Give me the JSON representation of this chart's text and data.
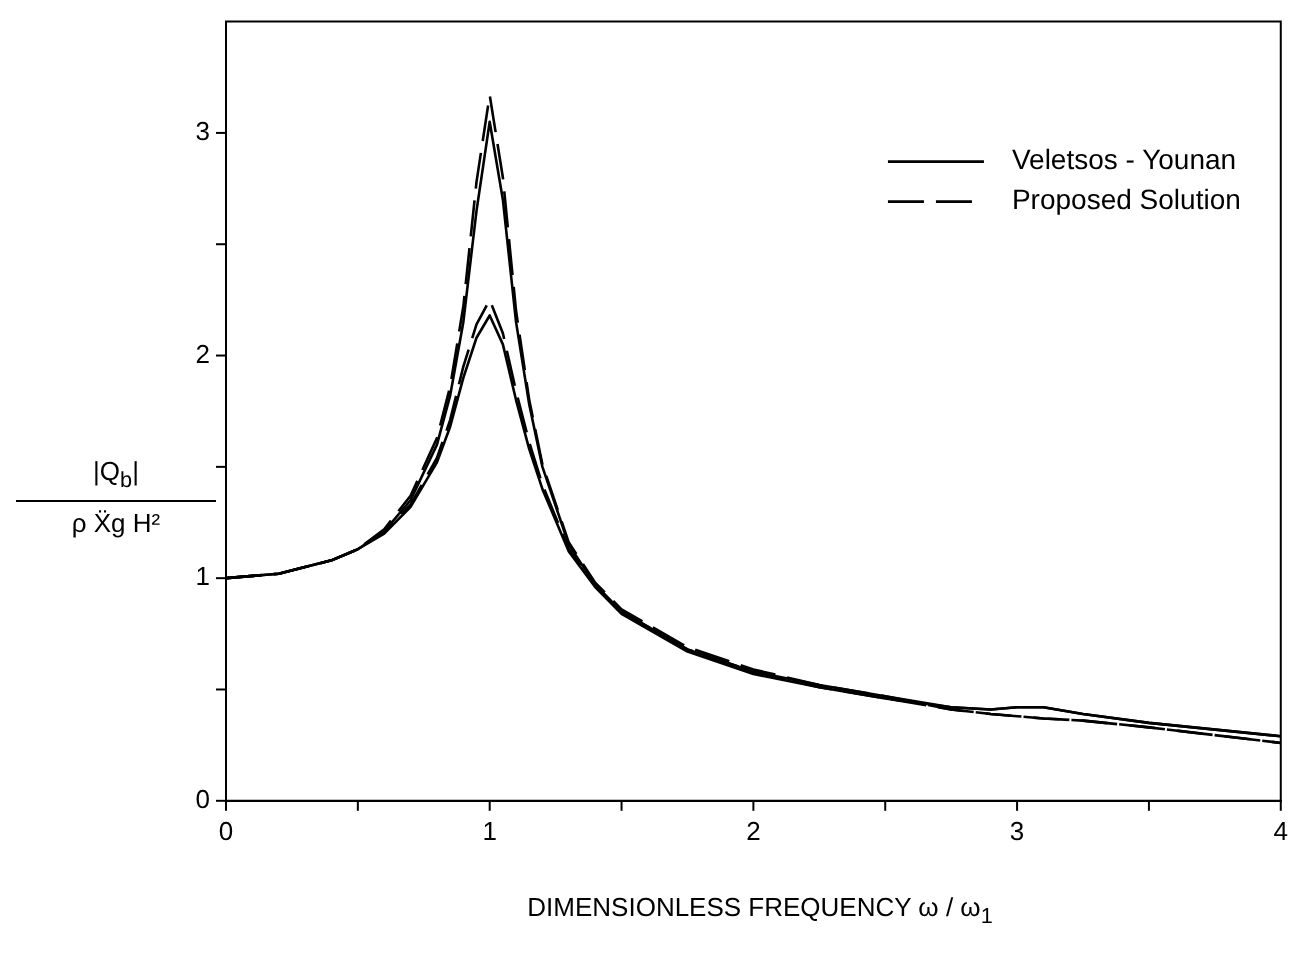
{
  "chart_data": {
    "type": "line",
    "xlabel": "DIMENSIONLESS FREQUENCY ω / ω$_{1}$",
    "ylabel": [
      "|Q$_{b}$|",
      "ρ Ẍg H²"
    ],
    "xlim": [
      0,
      4
    ],
    "xticks": [
      0,
      {
        "value": 0.5,
        "label": null
      },
      1,
      {
        "value": 1.5,
        "label": null
      },
      2,
      {
        "value": 2.5,
        "label": null
      },
      3,
      {
        "value": 3.5,
        "label": null
      },
      4
    ],
    "ylim": [
      0,
      3.5
    ],
    "yticks": [
      0,
      {
        "value": 0.5,
        "label": null
      },
      1,
      {
        "value": 1.5,
        "label": null
      },
      2,
      {
        "value": 2.5,
        "label": null
      },
      3
    ],
    "x": [
      0,
      0.2,
      0.4,
      0.5,
      0.6,
      0.7,
      0.8,
      0.85,
      0.9,
      0.95,
      1.0,
      1.05,
      1.1,
      1.15,
      1.2,
      1.3,
      1.4,
      1.5,
      1.75,
      2,
      2.25,
      2.5,
      2.75,
      2.9,
      3.0,
      3.1,
      3.25,
      3.5,
      4
    ],
    "legend": "top right",
    "grid": false,
    "marker": "none",
    "series": [
      {
        "name": "Veletsos - Younan",
        "color": "#000000",
        "line_style": "solid",
        "values": [
          1,
          1.02,
          1.08,
          1.13,
          1.21,
          1.35,
          1.6,
          1.82,
          2.15,
          2.65,
          3.05,
          2.7,
          2.15,
          1.78,
          1.5,
          1.15,
          0.97,
          0.85,
          0.68,
          0.58,
          0.52,
          0.47,
          0.42,
          0.41,
          0.42,
          0.42,
          0.39,
          0.35,
          0.29
        ]
      },
      {
        "name": null,
        "color": "#000000",
        "line_style": "solid",
        "values": [
          1,
          1.02,
          1.08,
          1.13,
          1.2,
          1.32,
          1.52,
          1.68,
          1.9,
          2.08,
          2.18,
          2.05,
          1.8,
          1.58,
          1.4,
          1.12,
          0.96,
          0.84,
          0.67,
          0.57,
          0.51,
          0.46,
          0.42,
          0.41,
          0.42,
          0.42,
          0.39,
          0.35,
          0.29
        ]
      },
      {
        "name": "Proposed Solution",
        "color": "#000000",
        "line_style": "dashed",
        "values": [
          1,
          1.02,
          1.08,
          1.13,
          1.22,
          1.37,
          1.63,
          1.86,
          2.22,
          2.78,
          3.17,
          2.8,
          2.2,
          1.8,
          1.51,
          1.16,
          0.98,
          0.86,
          0.69,
          0.59,
          0.52,
          0.47,
          0.41,
          0.39,
          0.38,
          0.37,
          0.36,
          0.33,
          0.26
        ]
      },
      {
        "name": null,
        "color": "#000000",
        "line_style": "dashed",
        "values": [
          1,
          1.02,
          1.08,
          1.13,
          1.21,
          1.33,
          1.54,
          1.71,
          1.95,
          2.14,
          2.25,
          2.1,
          1.84,
          1.61,
          1.42,
          1.13,
          0.97,
          0.85,
          0.68,
          0.58,
          0.51,
          0.46,
          0.41,
          0.39,
          0.38,
          0.37,
          0.36,
          0.33,
          0.26
        ]
      }
    ]
  }
}
